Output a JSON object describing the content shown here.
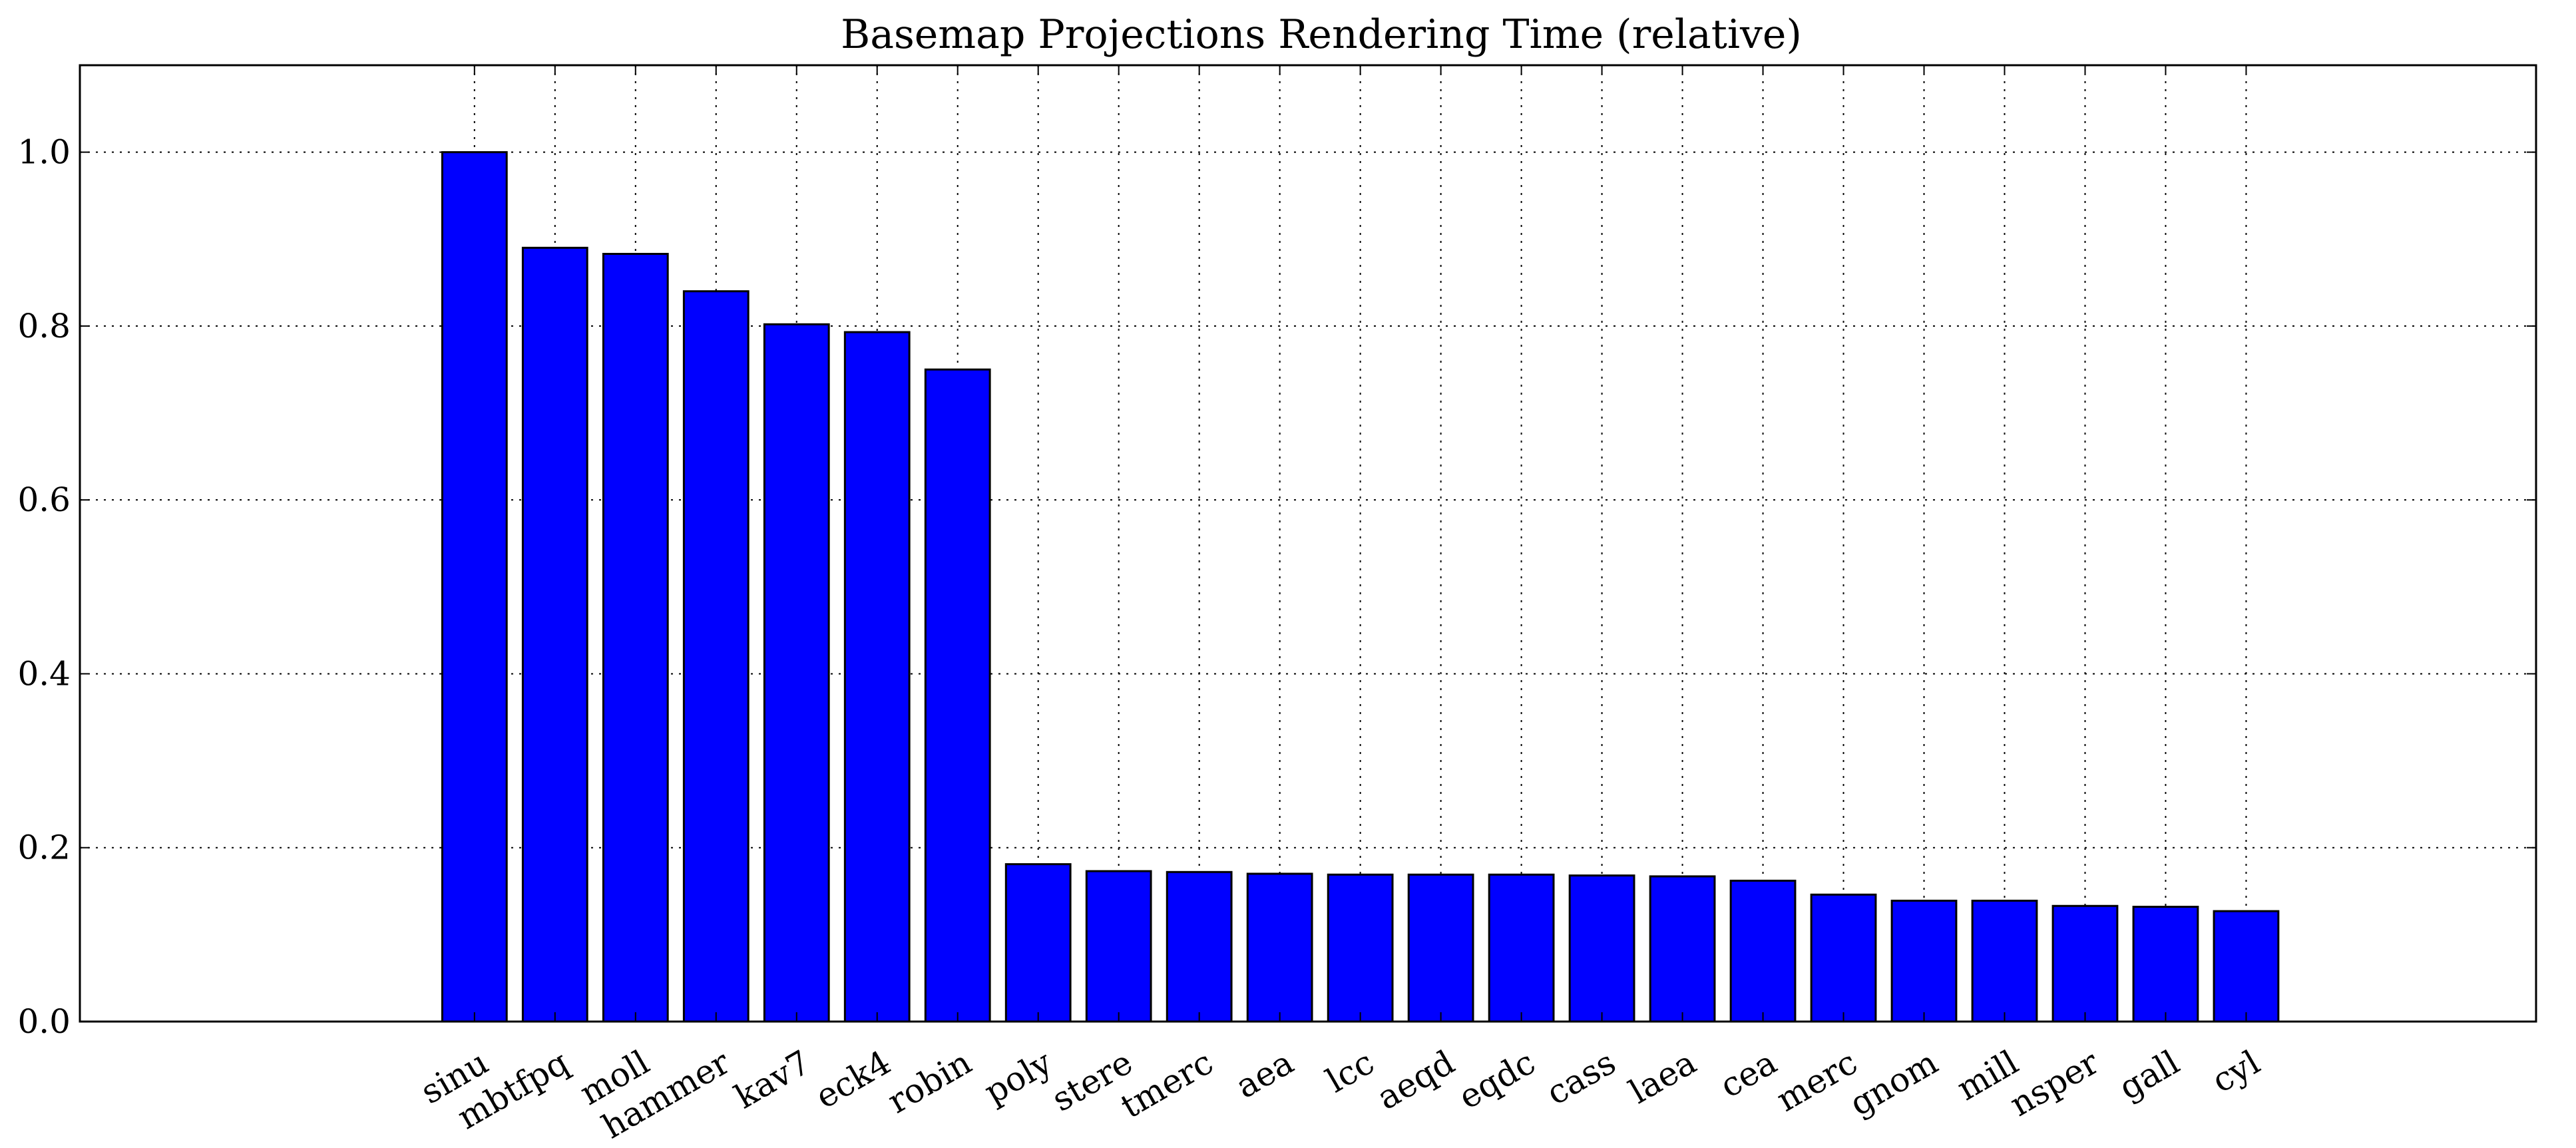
{
  "chart_data": {
    "type": "bar",
    "title": "Basemap Projections Rendering Time (relative)",
    "xlabel": "",
    "ylabel": "",
    "categories": [
      "sinu",
      "mbtfpq",
      "moll",
      "hammer",
      "kav7",
      "eck4",
      "robin",
      "poly",
      "stere",
      "tmerc",
      "aea",
      "lcc",
      "aeqd",
      "eqdc",
      "cass",
      "laea",
      "cea",
      "merc",
      "gnom",
      "mill",
      "nsper",
      "gall",
      "cyl"
    ],
    "values": [
      1.0,
      0.89,
      0.883,
      0.84,
      0.802,
      0.793,
      0.75,
      0.181,
      0.173,
      0.172,
      0.17,
      0.169,
      0.169,
      0.169,
      0.168,
      0.167,
      0.162,
      0.146,
      0.139,
      0.139,
      0.133,
      0.132,
      0.127
    ],
    "ylim": [
      0.0,
      1.1
    ],
    "xlim": [
      -4.9,
      25.6
    ],
    "yticks": [
      "0.0",
      "0.2",
      "0.4",
      "0.6",
      "0.8",
      "1.0"
    ],
    "bar_color": "#0000ff",
    "edge_color": "#000000",
    "grid": true,
    "grid_style": "dotted",
    "x_tick_label_rotation": "30 degrees"
  }
}
